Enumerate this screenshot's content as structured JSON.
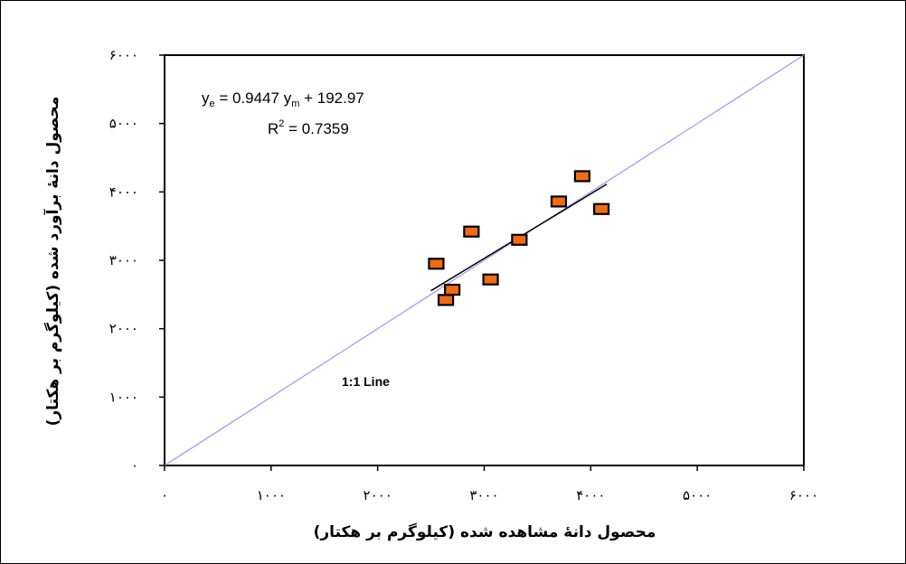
{
  "chart_data": {
    "type": "scatter",
    "xlabel": "محصول دانهٔ مشاهده شده (کیلوگرم بر هکتار)",
    "ylabel": "محصول دانهٔ برآورد شده (کیلوگرم بر هکتار)",
    "xlim": [
      0,
      6000
    ],
    "ylim": [
      0,
      6000
    ],
    "x_ticks": [
      0,
      1000,
      2000,
      3000,
      4000,
      5000,
      6000
    ],
    "y_ticks": [
      0,
      1000,
      2000,
      3000,
      4000,
      5000,
      6000
    ],
    "x_tick_labels": [
      "۰",
      "۱۰۰۰",
      "۲۰۰۰",
      "۳۰۰۰",
      "۴۰۰۰",
      "۵۰۰۰",
      "۶۰۰۰"
    ],
    "y_tick_labels": [
      "۰",
      "۱۰۰۰",
      "۲۰۰۰",
      "۳۰۰۰",
      "۴۰۰۰",
      "۵۰۰۰",
      "۶۰۰۰"
    ],
    "grid": false,
    "points": [
      {
        "x": 2550,
        "y": 2950
      },
      {
        "x": 2640,
        "y": 2420
      },
      {
        "x": 2700,
        "y": 2570
      },
      {
        "x": 2880,
        "y": 3420
      },
      {
        "x": 3060,
        "y": 2720
      },
      {
        "x": 3330,
        "y": 3300
      },
      {
        "x": 3700,
        "y": 3860
      },
      {
        "x": 3920,
        "y": 4230
      },
      {
        "x": 4100,
        "y": 3750
      }
    ],
    "marker_color": "#f26a10",
    "marker_edge_color": "#000000",
    "regression": {
      "slope": 0.9447,
      "intercept": 192.97,
      "x_range": [
        2500,
        4150
      ],
      "color": "#000000",
      "equation_y": "y",
      "equation_y_sub": "e",
      "equation_mid": " =  0.9447  y",
      "equation_x_sub": "m",
      "equation_tail": " +  192.97",
      "r2_label": "R",
      "r2_sup": "2",
      "r2_value": " =  0.7359"
    },
    "identity_line": {
      "label": "1:1 Line",
      "color": "#9999ee"
    }
  }
}
